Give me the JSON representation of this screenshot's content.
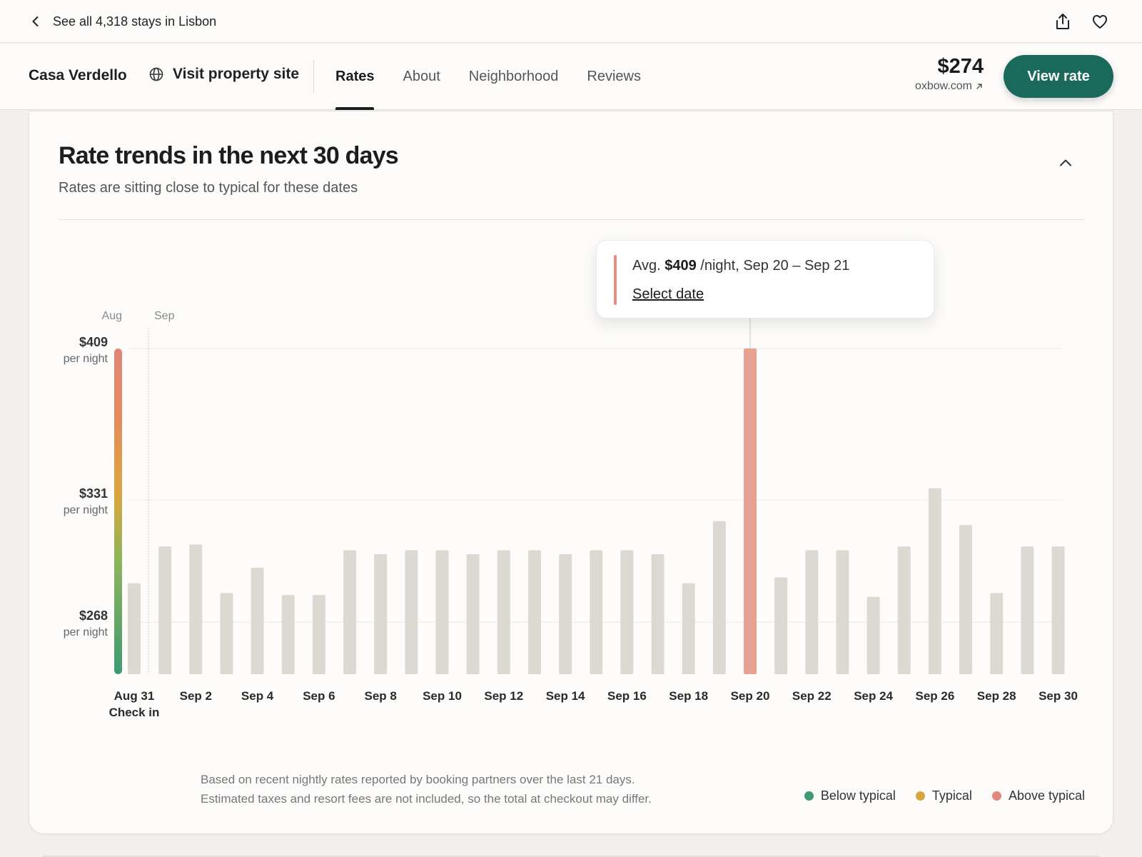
{
  "topbar": {
    "back_label": "See all 4,318 stays in Lisbon"
  },
  "nav": {
    "property_name": "Casa Verdello",
    "visit_label": "Visit property site",
    "tabs": [
      {
        "label": "Rates",
        "active": true
      },
      {
        "label": "About",
        "active": false
      },
      {
        "label": "Neighborhood",
        "active": false
      },
      {
        "label": "Reviews",
        "active": false
      }
    ],
    "price": "$274",
    "price_source": "oxbow.com",
    "cta_label": "View rate"
  },
  "card": {
    "title": "Rate trends in the next 30 days",
    "subtitle": "Rates are sitting close to typical for these dates"
  },
  "tooltip": {
    "prefix": "Avg.",
    "amount": "$409",
    "suffix": "/night, Sep 20 – Sep 21",
    "link": "Select date"
  },
  "footnote": {
    "line1": "Based on recent nightly rates reported by booking partners over the last 21 days.",
    "line2": "Estimated taxes and resort fees are not included, so the total at checkout may differ."
  },
  "legend": [
    {
      "label": "Below typical",
      "color": "#3f9a72"
    },
    {
      "label": "Typical",
      "color": "#d9a63e"
    },
    {
      "label": "Above typical",
      "color": "#e0867a"
    }
  ],
  "colors": {
    "accent": "#1a6a5c",
    "bar_default": "#dcd9d3",
    "bar_highlight": "#e8a090"
  },
  "chart_data": {
    "type": "bar",
    "month_labels": [
      "Aug",
      "Sep"
    ],
    "y_ticks": [
      {
        "value": 409,
        "label": "$409",
        "sub": "per night"
      },
      {
        "value": 331,
        "label": "$331",
        "sub": "per night"
      },
      {
        "value": 268,
        "label": "$268",
        "sub": "per night"
      }
    ],
    "ylim": [
      250,
      409
    ],
    "x_tick_labels": [
      "Aug 31",
      "Sep 2",
      "Sep 4",
      "Sep 6",
      "Sep 8",
      "Sep 10",
      "Sep 12",
      "Sep 14",
      "Sep 16",
      "Sep 18",
      "Sep 20",
      "Sep 22",
      "Sep 24",
      "Sep 26",
      "Sep 28",
      "Sep 30"
    ],
    "check_in_label": "Check in",
    "categories": [
      "Aug 31",
      "Sep 1",
      "Sep 2",
      "Sep 3",
      "Sep 4",
      "Sep 5",
      "Sep 6",
      "Sep 7",
      "Sep 8",
      "Sep 9",
      "Sep 10",
      "Sep 11",
      "Sep 12",
      "Sep 13",
      "Sep 14",
      "Sep 15",
      "Sep 16",
      "Sep 17",
      "Sep 18",
      "Sep 19",
      "Sep 20",
      "Sep 21",
      "Sep 22",
      "Sep 23",
      "Sep 24",
      "Sep 25",
      "Sep 26",
      "Sep 27",
      "Sep 28",
      "Sep 29",
      "Sep 30"
    ],
    "values": [
      288,
      307,
      308,
      283,
      296,
      282,
      282,
      305,
      303,
      305,
      305,
      303,
      305,
      305,
      303,
      305,
      305,
      303,
      288,
      320,
      409,
      291,
      305,
      305,
      281,
      307,
      337,
      318,
      283,
      307,
      307
    ],
    "highlight": "Sep 20",
    "range_bar": {
      "min": 250,
      "max": 409
    }
  }
}
